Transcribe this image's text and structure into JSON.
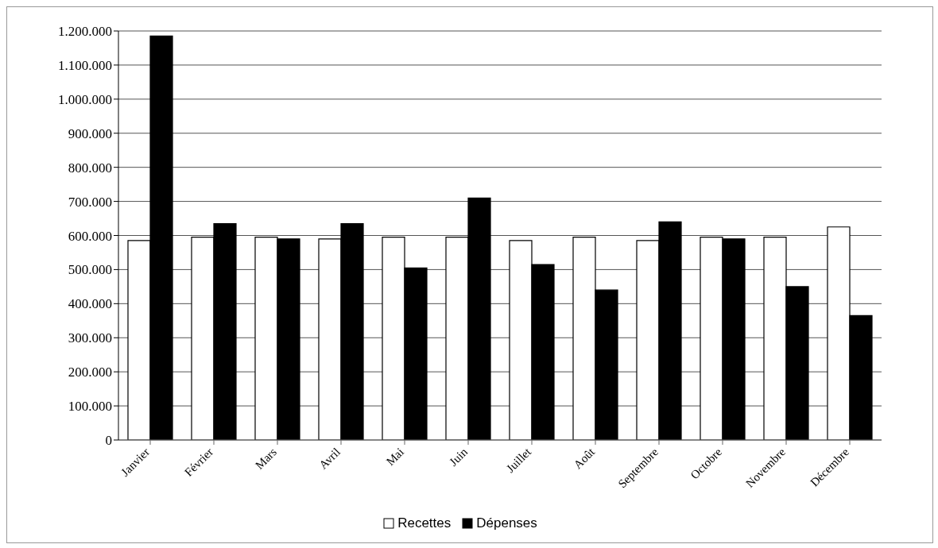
{
  "chart_data": {
    "type": "bar",
    "categories": [
      "Janvier",
      "Février",
      "Mars",
      "Avril",
      "Mai",
      "Juin",
      "Juillet",
      "Août",
      "Septembre",
      "Octobre",
      "Novembre",
      "Décembre"
    ],
    "series": [
      {
        "name": "Recettes",
        "color": "#ffffff",
        "values": [
          585000,
          595000,
          595000,
          590000,
          595000,
          595000,
          585000,
          595000,
          585000,
          595000,
          595000,
          625000
        ]
      },
      {
        "name": "Dépenses",
        "color": "#000000",
        "values": [
          1185000,
          635000,
          590000,
          635000,
          505000,
          710000,
          515000,
          440000,
          640000,
          590000,
          450000,
          365000
        ]
      }
    ],
    "ylim": [
      0,
      1200000
    ],
    "yticks": [
      {
        "value": 0,
        "label": "0"
      },
      {
        "value": 100000,
        "label": "100.000"
      },
      {
        "value": 200000,
        "label": "200.000"
      },
      {
        "value": 300000,
        "label": "300.000"
      },
      {
        "value": 400000,
        "label": "400.000"
      },
      {
        "value": 500000,
        "label": "500.000"
      },
      {
        "value": 600000,
        "label": "600.000"
      },
      {
        "value": 700000,
        "label": "700.000"
      },
      {
        "value": 800000,
        "label": "800.000"
      },
      {
        "value": 900000,
        "label": "900.000"
      },
      {
        "value": 1000000,
        "label": "1.000.000"
      },
      {
        "value": 1100000,
        "label": "1.100.000"
      },
      {
        "value": 1200000,
        "label": "1.200.000"
      }
    ],
    "grid": "y",
    "legend": "bottom"
  }
}
